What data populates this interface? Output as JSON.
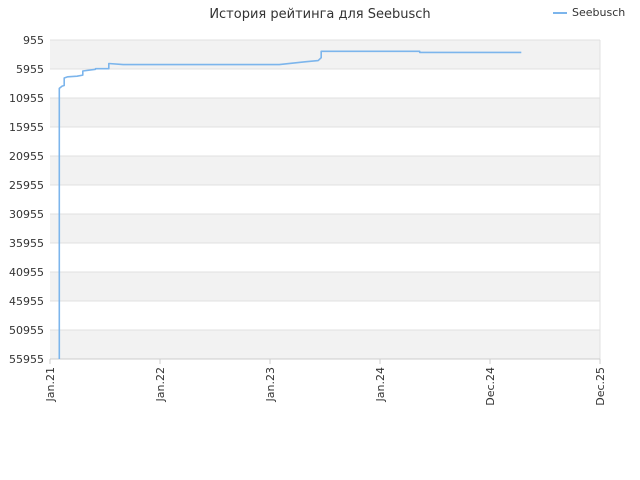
{
  "chart_data": {
    "type": "line",
    "title": "История рейтинга для Seebusch",
    "xlabel": "",
    "ylabel": "",
    "y_inverted": true,
    "ylim": [
      955,
      55955
    ],
    "y_ticks": [
      "955",
      "5955",
      "10955",
      "15955",
      "20955",
      "25955",
      "30955",
      "35955",
      "40955",
      "45955",
      "50955",
      "55955"
    ],
    "x_ticks": [
      "Jan.21",
      "Jan.22",
      "Jan.23",
      "Jan.24",
      "Dec.24",
      "Dec.25"
    ],
    "grid": true,
    "legend_position": "top-right",
    "series": [
      {
        "name": "Seebusch",
        "color": "#7cb5ec",
        "points": [
          [
            "2021-02-01",
            55955
          ],
          [
            "2021-02-01",
            9300
          ],
          [
            "2021-02-10",
            8900
          ],
          [
            "2021-02-17",
            8800
          ],
          [
            "2021-02-17",
            7500
          ],
          [
            "2021-03-01",
            7300
          ],
          [
            "2021-04-01",
            7200
          ],
          [
            "2021-04-20",
            7000
          ],
          [
            "2021-04-20",
            6300
          ],
          [
            "2021-06-01",
            6000
          ],
          [
            "2021-06-01",
            5900
          ],
          [
            "2021-07-15",
            5900
          ],
          [
            "2021-07-15",
            5000
          ],
          [
            "2021-09-01",
            5200
          ],
          [
            "2021-12-31",
            5200
          ],
          [
            "2022-12-31",
            5200
          ],
          [
            "2023-02-01",
            5200
          ],
          [
            "2023-05-01",
            4700
          ],
          [
            "2023-06-10",
            4500
          ],
          [
            "2023-06-20",
            4000
          ],
          [
            "2023-06-20",
            2900
          ],
          [
            "2024-05-01",
            2900
          ],
          [
            "2024-05-01",
            3100
          ],
          [
            "2025-03-15",
            3100
          ]
        ]
      }
    ]
  }
}
